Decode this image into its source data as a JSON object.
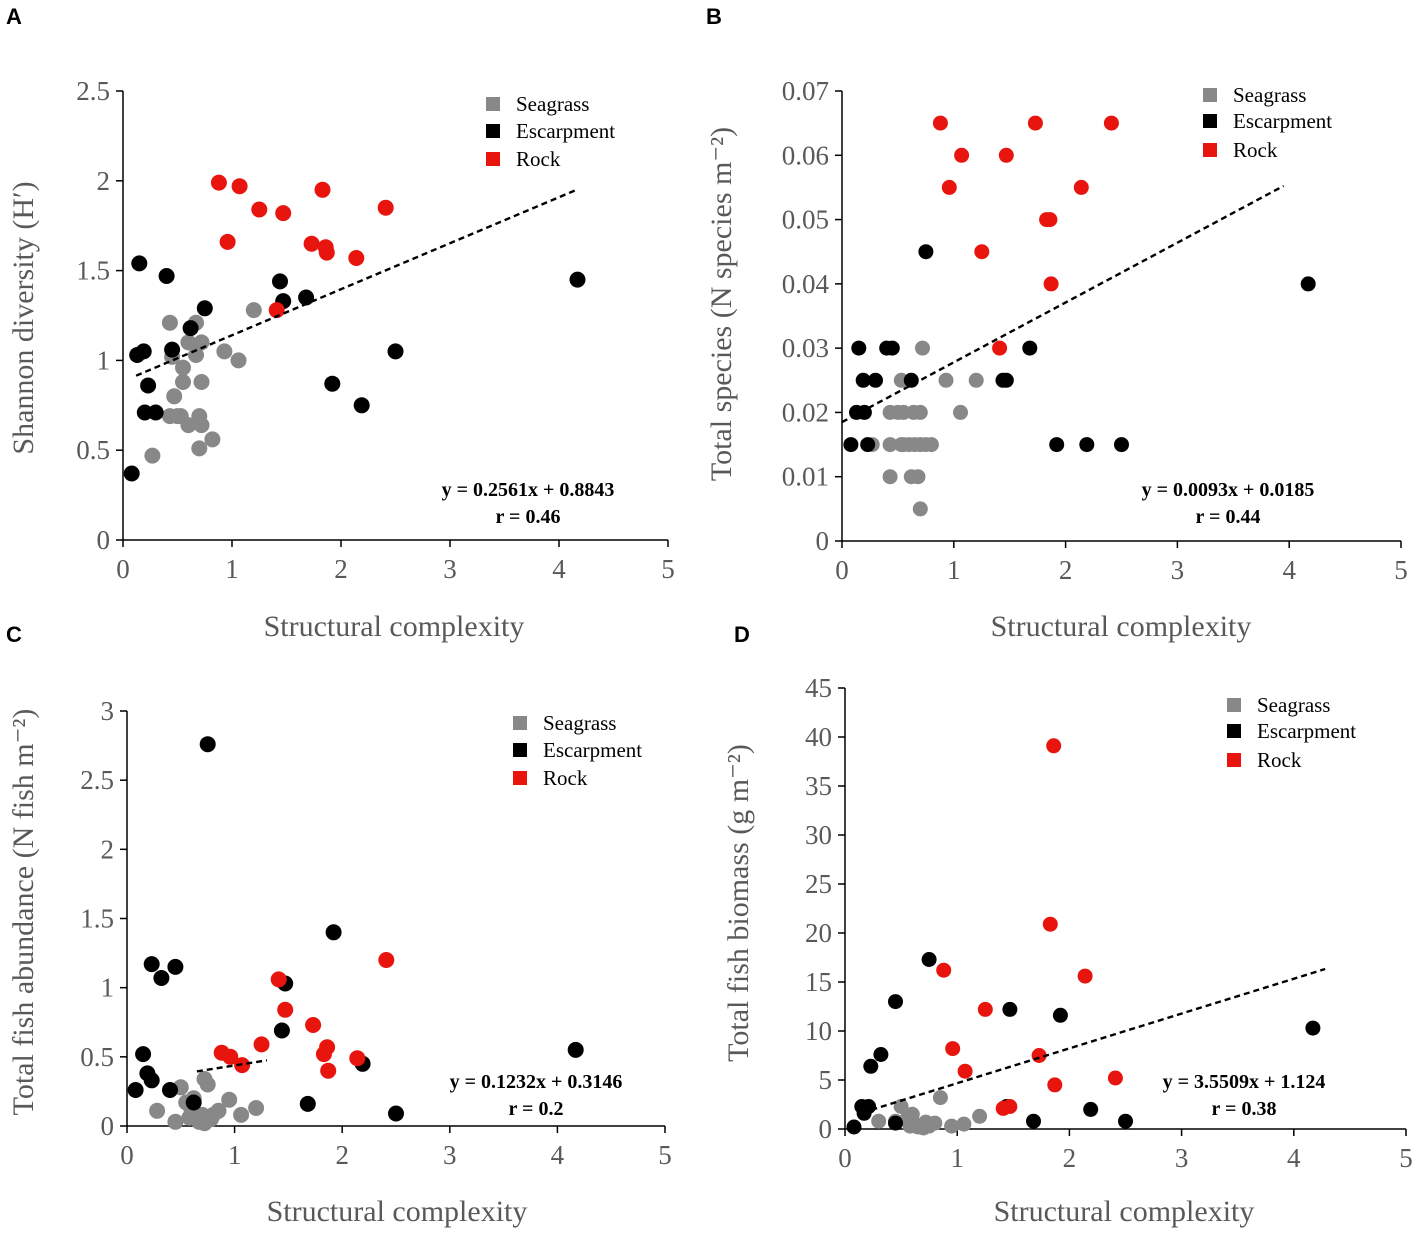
{
  "colors": {
    "seagrass": "#888888",
    "escarpment": "#000000",
    "rock": "#e8150f",
    "axis": "#000000",
    "tick_text": "#595959"
  },
  "chart_data": [
    {
      "panel": "A",
      "type": "scatter",
      "xlabel": "Structural complexity",
      "ylabel": "Shannon diversity (H′)",
      "xlim": [
        0,
        5
      ],
      "ylim": [
        0,
        2.5
      ],
      "xticks": [
        "0",
        "1",
        "2",
        "3",
        "4",
        "5"
      ],
      "yticks": [
        "0",
        "0.5",
        "1",
        "1.5",
        "2",
        "2.5"
      ],
      "legend": [
        "Seagrass",
        "Escarpment",
        "Rock"
      ],
      "equation": "y = 0.2561x + 0.8843",
      "r_label": "r = 0.46",
      "trend": {
        "slope": 0.2561,
        "intercept": 0.8843,
        "x_range": [
          0.12,
          4.15
        ]
      },
      "series": [
        {
          "name": "Seagrass",
          "points": [
            [
              0.27,
              0.47
            ],
            [
              0.43,
              0.69
            ],
            [
              0.43,
              1.21
            ],
            [
              0.5,
              0.69
            ],
            [
              0.53,
              0.69
            ],
            [
              0.47,
              0.8
            ],
            [
              0.55,
              0.88
            ],
            [
              0.55,
              0.96
            ],
            [
              0.6,
              1.1
            ],
            [
              0.6,
              0.64
            ],
            [
              0.67,
              1.03
            ],
            [
              0.67,
              1.21
            ],
            [
              0.7,
              0.69
            ],
            [
              0.72,
              0.64
            ],
            [
              0.72,
              0.88
            ],
            [
              0.72,
              1.1
            ],
            [
              0.7,
              0.51
            ],
            [
              0.82,
              0.56
            ],
            [
              0.93,
              1.05
            ],
            [
              1.06,
              1.0
            ],
            [
              1.2,
              1.28
            ],
            [
              0.45,
              1.02
            ]
          ]
        },
        {
          "name": "Escarpment",
          "points": [
            [
              0.08,
              0.37
            ],
            [
              0.13,
              1.03
            ],
            [
              0.15,
              1.54
            ],
            [
              0.19,
              1.05
            ],
            [
              0.2,
              0.71
            ],
            [
              0.23,
              0.86
            ],
            [
              0.3,
              0.71
            ],
            [
              0.4,
              1.47
            ],
            [
              0.45,
              1.06
            ],
            [
              0.62,
              1.18
            ],
            [
              0.75,
              1.29
            ],
            [
              1.44,
              1.44
            ],
            [
              1.47,
              1.33
            ],
            [
              1.68,
              1.35
            ],
            [
              1.92,
              0.87
            ],
            [
              2.19,
              0.75
            ],
            [
              2.5,
              1.05
            ],
            [
              4.17,
              1.45
            ]
          ]
        },
        {
          "name": "Rock",
          "points": [
            [
              0.88,
              1.99
            ],
            [
              0.96,
              1.66
            ],
            [
              1.07,
              1.97
            ],
            [
              1.25,
              1.84
            ],
            [
              1.41,
              1.28
            ],
            [
              1.47,
              1.82
            ],
            [
              1.73,
              1.65
            ],
            [
              1.83,
              1.95
            ],
            [
              1.86,
              1.63
            ],
            [
              1.87,
              1.6
            ],
            [
              2.14,
              1.57
            ],
            [
              2.41,
              1.85
            ]
          ]
        }
      ]
    },
    {
      "panel": "B",
      "type": "scatter",
      "xlabel": "Structural complexity",
      "ylabel": "Total species (N species m⁻²)",
      "xlim": [
        0,
        5
      ],
      "ylim": [
        0,
        0.07
      ],
      "xticks": [
        "0",
        "1",
        "2",
        "3",
        "4",
        "5"
      ],
      "yticks": [
        "0",
        "0.01",
        "0.02",
        "0.03",
        "0.04",
        "0.05",
        "0.06",
        "0.07"
      ],
      "legend": [
        "Seagrass",
        "Escarpment",
        "Rock"
      ],
      "equation": "y = 0.0093x + 0.0185",
      "r_label": "r = 0.44",
      "trend": {
        "slope": 0.0093,
        "intercept": 0.0185,
        "x_range": [
          0.0,
          3.95
        ]
      },
      "series": [
        {
          "name": "Seagrass",
          "points": [
            [
              0.27,
              0.015
            ],
            [
              0.43,
              0.01
            ],
            [
              0.43,
              0.015
            ],
            [
              0.43,
              0.02
            ],
            [
              0.5,
              0.02
            ],
            [
              0.53,
              0.015
            ],
            [
              0.53,
              0.025
            ],
            [
              0.55,
              0.02
            ],
            [
              0.55,
              0.015
            ],
            [
              0.6,
              0.015
            ],
            [
              0.62,
              0.01
            ],
            [
              0.64,
              0.02
            ],
            [
              0.65,
              0.015
            ],
            [
              0.68,
              0.01
            ],
            [
              0.7,
              0.005
            ],
            [
              0.7,
              0.015
            ],
            [
              0.7,
              0.02
            ],
            [
              0.72,
              0.03
            ],
            [
              0.75,
              0.015
            ],
            [
              0.8,
              0.015
            ],
            [
              0.93,
              0.025
            ],
            [
              1.06,
              0.02
            ],
            [
              1.2,
              0.025
            ]
          ]
        },
        {
          "name": "Escarpment",
          "points": [
            [
              0.08,
              0.015
            ],
            [
              0.13,
              0.02
            ],
            [
              0.15,
              0.03
            ],
            [
              0.19,
              0.025
            ],
            [
              0.2,
              0.02
            ],
            [
              0.23,
              0.015
            ],
            [
              0.3,
              0.025
            ],
            [
              0.4,
              0.03
            ],
            [
              0.45,
              0.03
            ],
            [
              0.62,
              0.025
            ],
            [
              0.75,
              0.045
            ],
            [
              1.44,
              0.025
            ],
            [
              1.47,
              0.025
            ],
            [
              1.68,
              0.03
            ],
            [
              1.92,
              0.015
            ],
            [
              2.19,
              0.015
            ],
            [
              2.5,
              0.015
            ],
            [
              4.17,
              0.04
            ]
          ]
        },
        {
          "name": "Rock",
          "points": [
            [
              0.88,
              0.065
            ],
            [
              0.96,
              0.055
            ],
            [
              1.07,
              0.06
            ],
            [
              1.25,
              0.045
            ],
            [
              1.41,
              0.03
            ],
            [
              1.47,
              0.06
            ],
            [
              1.73,
              0.065
            ],
            [
              1.83,
              0.05
            ],
            [
              1.86,
              0.05
            ],
            [
              1.87,
              0.04
            ],
            [
              2.14,
              0.055
            ],
            [
              2.41,
              0.065
            ]
          ]
        }
      ]
    },
    {
      "panel": "C",
      "type": "scatter",
      "xlabel": "Structural complexity",
      "ylabel": "Total fish abundance (N fish m⁻²)",
      "xlim": [
        0,
        5
      ],
      "ylim": [
        0,
        3
      ],
      "xticks": [
        "0",
        "1",
        "2",
        "3",
        "4",
        "5"
      ],
      "yticks": [
        "0",
        "0.5",
        "1",
        "1.5",
        "2",
        "2.5",
        "3"
      ],
      "legend": [
        "Seagrass",
        "Escarpment",
        "Rock"
      ],
      "equation": "y = 0.1232x + 0.3146",
      "r_label": "r = 0.2",
      "trend": {
        "slope": 0.1232,
        "intercept": 0.3146,
        "x_range": [
          0.65,
          1.3
        ]
      },
      "series": [
        {
          "name": "Seagrass",
          "points": [
            [
              0.28,
              0.11
            ],
            [
              0.45,
              0.03
            ],
            [
              0.5,
              0.28
            ],
            [
              0.55,
              0.17
            ],
            [
              0.58,
              0.06
            ],
            [
              0.6,
              0.11
            ],
            [
              0.62,
              0.2
            ],
            [
              0.65,
              0.06
            ],
            [
              0.67,
              0.03
            ],
            [
              0.7,
              0.08
            ],
            [
              0.72,
              0.02
            ],
            [
              0.72,
              0.34
            ],
            [
              0.75,
              0.3
            ],
            [
              0.78,
              0.05
            ],
            [
              0.8,
              0.08
            ],
            [
              0.85,
              0.11
            ],
            [
              0.95,
              0.19
            ],
            [
              1.06,
              0.08
            ],
            [
              1.2,
              0.13
            ]
          ]
        },
        {
          "name": "Escarpment",
          "points": [
            [
              0.08,
              0.26
            ],
            [
              0.15,
              0.52
            ],
            [
              0.19,
              0.38
            ],
            [
              0.23,
              1.17
            ],
            [
              0.23,
              0.33
            ],
            [
              0.32,
              1.07
            ],
            [
              0.4,
              0.26
            ],
            [
              0.45,
              1.15
            ],
            [
              0.62,
              0.17
            ],
            [
              0.75,
              2.76
            ],
            [
              1.44,
              0.69
            ],
            [
              1.47,
              1.03
            ],
            [
              1.68,
              0.16
            ],
            [
              1.92,
              1.4
            ],
            [
              2.19,
              0.45
            ],
            [
              2.5,
              0.09
            ],
            [
              4.17,
              0.55
            ]
          ]
        },
        {
          "name": "Rock",
          "points": [
            [
              0.88,
              0.53
            ],
            [
              0.96,
              0.5
            ],
            [
              1.07,
              0.44
            ],
            [
              1.25,
              0.59
            ],
            [
              1.41,
              1.06
            ],
            [
              1.47,
              0.84
            ],
            [
              1.73,
              0.73
            ],
            [
              1.83,
              0.52
            ],
            [
              1.86,
              0.57
            ],
            [
              1.87,
              0.4
            ],
            [
              2.14,
              0.49
            ],
            [
              2.41,
              1.2
            ]
          ]
        }
      ]
    },
    {
      "panel": "D",
      "type": "scatter",
      "xlabel": "Structural complexity",
      "ylabel": "Total fish biomass (g m⁻²)",
      "xlim": [
        0,
        5
      ],
      "ylim": [
        0,
        45
      ],
      "xticks": [
        "0",
        "1",
        "2",
        "3",
        "4",
        "5"
      ],
      "yticks": [
        "0",
        "5",
        "10",
        "15",
        "20",
        "25",
        "30",
        "35",
        "40",
        "45"
      ],
      "legend": [
        "Seagrass",
        "Escarpment",
        "Rock"
      ],
      "equation": "y = 3.5509x + 1.124",
      "r_label": "r = 0.38",
      "trend": {
        "slope": 3.5509,
        "intercept": 1.124,
        "x_range": [
          0.15,
          4.28
        ]
      },
      "series": [
        {
          "name": "Seagrass",
          "points": [
            [
              0.3,
              0.8
            ],
            [
              0.45,
              0.8
            ],
            [
              0.5,
              2.3
            ],
            [
              0.55,
              1.0
            ],
            [
              0.58,
              0.3
            ],
            [
              0.6,
              1.5
            ],
            [
              0.62,
              0.5
            ],
            [
              0.65,
              0.2
            ],
            [
              0.7,
              0.1
            ],
            [
              0.72,
              0.7
            ],
            [
              0.75,
              0.3
            ],
            [
              0.8,
              0.6
            ],
            [
              0.85,
              3.2
            ],
            [
              0.95,
              0.3
            ],
            [
              1.06,
              0.5
            ],
            [
              1.2,
              1.3
            ]
          ]
        },
        {
          "name": "Escarpment",
          "points": [
            [
              0.08,
              0.2
            ],
            [
              0.15,
              2.3
            ],
            [
              0.17,
              1.6
            ],
            [
              0.21,
              2.3
            ],
            [
              0.23,
              6.4
            ],
            [
              0.32,
              7.6
            ],
            [
              0.45,
              0.6
            ],
            [
              0.45,
              13.0
            ],
            [
              0.75,
              17.3
            ],
            [
              1.44,
              2.3
            ],
            [
              1.47,
              12.2
            ],
            [
              1.68,
              0.8
            ],
            [
              1.92,
              11.6
            ],
            [
              2.19,
              2.0
            ],
            [
              2.5,
              0.8
            ],
            [
              4.17,
              10.3
            ]
          ]
        },
        {
          "name": "Rock",
          "points": [
            [
              0.88,
              16.2
            ],
            [
              0.96,
              8.2
            ],
            [
              1.07,
              5.9
            ],
            [
              1.25,
              12.2
            ],
            [
              1.41,
              2.1
            ],
            [
              1.47,
              2.3
            ],
            [
              1.73,
              7.5
            ],
            [
              1.83,
              20.9
            ],
            [
              1.86,
              39.1
            ],
            [
              1.87,
              4.5
            ],
            [
              2.14,
              15.6
            ],
            [
              2.41,
              5.2
            ]
          ]
        }
      ]
    }
  ]
}
